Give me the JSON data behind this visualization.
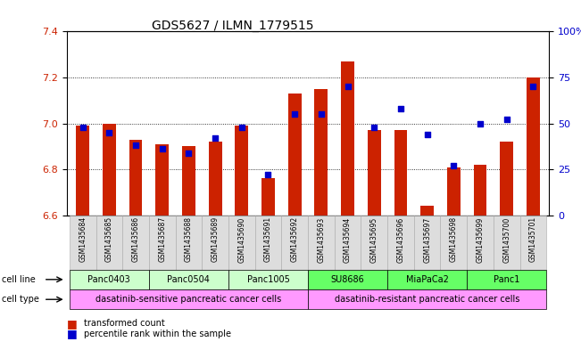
{
  "title": "GDS5627 / ILMN_1779515",
  "samples": [
    "GSM1435684",
    "GSM1435685",
    "GSM1435686",
    "GSM1435687",
    "GSM1435688",
    "GSM1435689",
    "GSM1435690",
    "GSM1435691",
    "GSM1435692",
    "GSM1435693",
    "GSM1435694",
    "GSM1435695",
    "GSM1435696",
    "GSM1435697",
    "GSM1435698",
    "GSM1435699",
    "GSM1435700",
    "GSM1435701"
  ],
  "transformed_count": [
    6.99,
    7.0,
    6.93,
    6.91,
    6.9,
    6.92,
    6.99,
    6.76,
    7.13,
    7.15,
    7.27,
    6.97,
    6.97,
    6.64,
    6.81,
    6.82,
    6.92,
    7.2
  ],
  "percentile_rank": [
    48,
    45,
    38,
    36,
    34,
    42,
    48,
    22,
    55,
    55,
    70,
    48,
    58,
    44,
    27,
    50,
    52,
    70
  ],
  "ylim_left": [
    6.6,
    7.4
  ],
  "ylim_right": [
    0,
    100
  ],
  "yticks_left": [
    6.6,
    6.8,
    7.0,
    7.2,
    7.4
  ],
  "yticks_right": [
    0,
    25,
    50,
    75,
    100
  ],
  "bar_color": "#cc2200",
  "dot_color": "#0000cc",
  "bg_color": "#ffffff",
  "plot_bg_color": "#ffffff",
  "cell_line_groups": [
    {
      "label": "Panc0403",
      "indices": [
        0,
        1,
        2
      ],
      "color": "#ccffcc"
    },
    {
      "label": "Panc0504",
      "indices": [
        3,
        4,
        5
      ],
      "color": "#ccffcc"
    },
    {
      "label": "Panc1005",
      "indices": [
        6,
        7,
        8
      ],
      "color": "#ccffcc"
    },
    {
      "label": "SU8686",
      "indices": [
        9,
        10,
        11
      ],
      "color": "#66ff66"
    },
    {
      "label": "MiaPaCa2",
      "indices": [
        12,
        13,
        14
      ],
      "color": "#66ff66"
    },
    {
      "label": "Panc1",
      "indices": [
        15,
        16,
        17
      ],
      "color": "#66ff66"
    }
  ],
  "cell_type_groups": [
    {
      "label": "dasatinib-sensitive pancreatic cancer cells",
      "start": 0,
      "end": 8,
      "color": "#ff99ff"
    },
    {
      "label": "dasatinib-resistant pancreatic cancer cells",
      "start": 9,
      "end": 17,
      "color": "#ff99ff"
    }
  ],
  "sample_label_color": "#888888",
  "grid_yticks": [
    6.8,
    7.0,
    7.2
  ]
}
